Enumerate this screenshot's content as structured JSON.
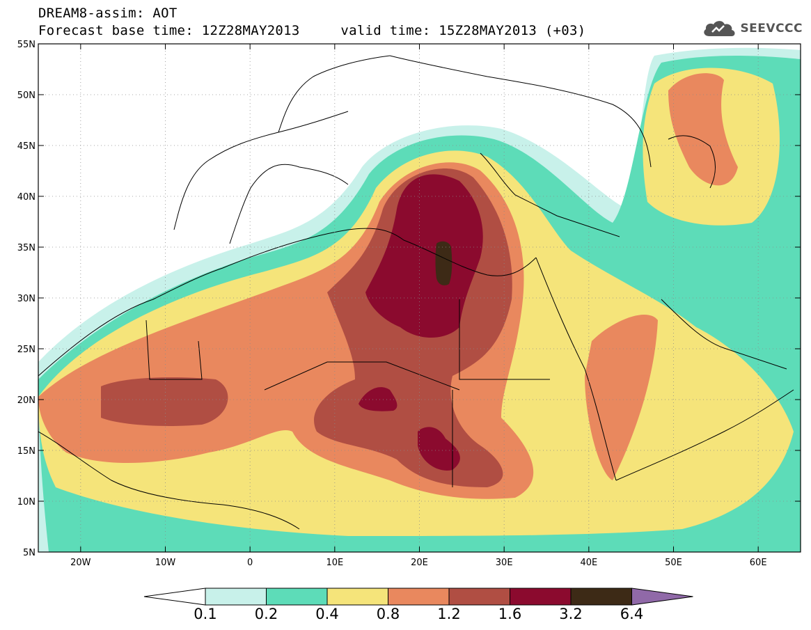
{
  "header": {
    "line1": "DREAM8-assim: AOT",
    "line2": "Forecast base time: 12Z28MAY2013     valid time: 15Z28MAY2013 (+03)"
  },
  "logo": {
    "icon": "cloud-icon",
    "text": "SEEVCCC"
  },
  "axes": {
    "lat_labels": [
      "55N",
      "50N",
      "45N",
      "40N",
      "35N",
      "30N",
      "25N",
      "20N",
      "15N",
      "10N",
      "5N"
    ],
    "lon_labels": [
      "20W",
      "10W",
      "0",
      "10E",
      "20E",
      "30E",
      "40E",
      "50E",
      "60E"
    ],
    "lon_range": [
      -25,
      65
    ],
    "lat_range": [
      5,
      55
    ]
  },
  "colorbar": {
    "labels": [
      "0.1",
      "0.2",
      "0.4",
      "0.8",
      "1.2",
      "1.6",
      "3.2",
      "6.4"
    ],
    "colors": [
      "#c8f1ea",
      "#5ddcb8",
      "#f5e47a",
      "#e9885e",
      "#b04e43",
      "#8b0a2e",
      "#3d2a16",
      "#9069a8"
    ]
  }
}
